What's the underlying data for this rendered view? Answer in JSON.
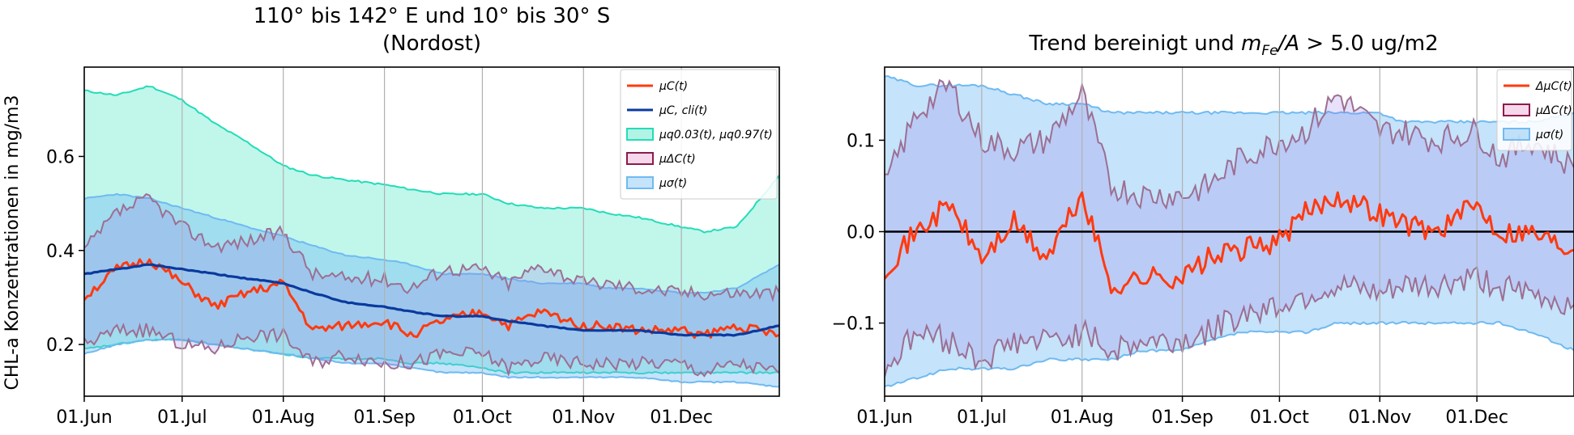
{
  "figure": {
    "ylabel": "CHL-a Konzentrationen in mg/m3"
  },
  "chart_data": [
    {
      "type": "line",
      "title_line1": "110° bis 142° E und 10° bis 30° S",
      "title_line2": "(Nordost)",
      "xlabel": "",
      "ylabel": "CHL-a Konzentrationen in mg/m3",
      "x_ticks": [
        "01.Jun",
        "01.Jul",
        "01.Aug",
        "01.Sep",
        "01.Oct",
        "01.Nov",
        "01.Dec"
      ],
      "x_tick_days": [
        0,
        30,
        61,
        92,
        122,
        153,
        183
      ],
      "x_range_days": [
        0,
        213
      ],
      "y_ticks": [
        0.2,
        0.4,
        0.6
      ],
      "ylim": [
        0.09,
        0.79
      ],
      "grid": "vertical",
      "legend_position": "top-right",
      "legend": [
        {
          "label": "μC(t)",
          "kind": "line",
          "color": "#ff3a10"
        },
        {
          "label": "μC, cli(t)",
          "kind": "line",
          "color": "#0a3a9e"
        },
        {
          "label": "μq0.03(t), μq0.97(t)",
          "kind": "patch",
          "color": "#22ddb8"
        },
        {
          "label": "μΔC(t)",
          "kind": "patch",
          "color": "#8c1b4a"
        },
        {
          "label": "μσ(t)",
          "kind": "patch",
          "color": "#6fbaf2"
        }
      ],
      "x_days": [
        0,
        10,
        20,
        30,
        40,
        50,
        61,
        70,
        80,
        92,
        100,
        110,
        122,
        130,
        140,
        153,
        160,
        170,
        183,
        190,
        200,
        213
      ],
      "series": [
        {
          "name": "μC(t)",
          "values": [
            0.3,
            0.36,
            0.38,
            0.33,
            0.28,
            0.31,
            0.33,
            0.23,
            0.24,
            0.25,
            0.22,
            0.25,
            0.27,
            0.24,
            0.27,
            0.24,
            0.24,
            0.23,
            0.23,
            0.22,
            0.24,
            0.22
          ]
        },
        {
          "name": "μC, cli(t)",
          "values": [
            0.35,
            0.36,
            0.37,
            0.36,
            0.35,
            0.34,
            0.33,
            0.31,
            0.29,
            0.28,
            0.27,
            0.26,
            0.26,
            0.25,
            0.24,
            0.23,
            0.23,
            0.23,
            0.22,
            0.22,
            0.22,
            0.24
          ]
        },
        {
          "name": "q0.97 upper",
          "values": [
            0.74,
            0.73,
            0.75,
            0.72,
            0.67,
            0.63,
            0.58,
            0.56,
            0.55,
            0.54,
            0.53,
            0.52,
            0.52,
            0.5,
            0.49,
            0.49,
            0.48,
            0.47,
            0.45,
            0.44,
            0.45,
            0.56
          ]
        },
        {
          "name": "q0.03 lower",
          "values": [
            0.19,
            0.2,
            0.21,
            0.21,
            0.2,
            0.19,
            0.18,
            0.17,
            0.17,
            0.17,
            0.16,
            0.16,
            0.15,
            0.14,
            0.14,
            0.14,
            0.14,
            0.14,
            0.14,
            0.14,
            0.14,
            0.14
          ]
        },
        {
          "name": "sigma upper",
          "values": [
            0.51,
            0.52,
            0.51,
            0.49,
            0.47,
            0.45,
            0.43,
            0.41,
            0.39,
            0.38,
            0.37,
            0.35,
            0.35,
            0.34,
            0.33,
            0.33,
            0.32,
            0.32,
            0.31,
            0.31,
            0.32,
            0.37
          ]
        },
        {
          "name": "sigma lower",
          "values": [
            0.18,
            0.2,
            0.21,
            0.21,
            0.2,
            0.19,
            0.18,
            0.17,
            0.16,
            0.16,
            0.15,
            0.14,
            0.14,
            0.13,
            0.13,
            0.13,
            0.13,
            0.13,
            0.12,
            0.12,
            0.12,
            0.11
          ]
        },
        {
          "name": "ΔC upper",
          "values": [
            0.4,
            0.48,
            0.51,
            0.45,
            0.41,
            0.42,
            0.44,
            0.35,
            0.34,
            0.34,
            0.32,
            0.36,
            0.36,
            0.33,
            0.37,
            0.33,
            0.33,
            0.32,
            0.31,
            0.31,
            0.31,
            0.31
          ]
        },
        {
          "name": "ΔC lower",
          "values": [
            0.2,
            0.23,
            0.23,
            0.2,
            0.19,
            0.22,
            0.22,
            0.16,
            0.18,
            0.16,
            0.16,
            0.18,
            0.18,
            0.15,
            0.17,
            0.16,
            0.16,
            0.16,
            0.16,
            0.14,
            0.16,
            0.14
          ]
        }
      ]
    },
    {
      "type": "line",
      "title": "Trend bereinigt und mFe/A > 5.0 ug/m2",
      "xlabel": "",
      "ylabel": "",
      "x_ticks": [
        "01.Jun",
        "01.Jul",
        "01.Aug",
        "01.Sep",
        "01.Oct",
        "01.Nov",
        "01.Dec"
      ],
      "x_tick_days": [
        0,
        30,
        61,
        92,
        122,
        153,
        183
      ],
      "x_range_days": [
        0,
        213
      ],
      "y_ticks": [
        -0.1,
        0.0,
        0.1
      ],
      "ylim": [
        -0.18,
        0.18
      ],
      "grid": "vertical",
      "zero_line": true,
      "legend_position": "top-right",
      "legend": [
        {
          "label": "ΔμC(t)",
          "kind": "line",
          "color": "#ff3a10"
        },
        {
          "label": "μΔC(t)",
          "kind": "patch",
          "color": "#8c1b4a"
        },
        {
          "label": "μσ(t)",
          "kind": "patch",
          "color": "#6fbaf2"
        }
      ],
      "x_days": [
        0,
        10,
        20,
        30,
        40,
        50,
        61,
        70,
        80,
        92,
        100,
        110,
        122,
        130,
        140,
        153,
        160,
        170,
        183,
        190,
        200,
        213
      ],
      "series": [
        {
          "name": "ΔμC(t)",
          "values": [
            -0.04,
            0.0,
            0.03,
            -0.03,
            0.01,
            -0.03,
            0.04,
            -0.06,
            -0.05,
            -0.05,
            -0.03,
            -0.02,
            -0.01,
            0.02,
            0.04,
            0.02,
            0.01,
            0.0,
            0.03,
            0.0,
            0.0,
            -0.02
          ]
        },
        {
          "name": "sigma upper",
          "values": [
            0.17,
            0.16,
            0.16,
            0.16,
            0.15,
            0.14,
            0.14,
            0.13,
            0.13,
            0.13,
            0.13,
            0.13,
            0.13,
            0.13,
            0.13,
            0.13,
            0.12,
            0.12,
            0.12,
            0.12,
            0.12,
            0.13
          ]
        },
        {
          "name": "sigma lower",
          "values": [
            -0.17,
            -0.16,
            -0.15,
            -0.15,
            -0.15,
            -0.14,
            -0.14,
            -0.14,
            -0.13,
            -0.13,
            -0.12,
            -0.11,
            -0.11,
            -0.11,
            -0.1,
            -0.1,
            -0.1,
            -0.1,
            -0.1,
            -0.1,
            -0.11,
            -0.13
          ]
        },
        {
          "name": "ΔC upper",
          "values": [
            0.05,
            0.13,
            0.16,
            0.1,
            0.09,
            0.1,
            0.15,
            0.05,
            0.04,
            0.04,
            0.05,
            0.08,
            0.1,
            0.11,
            0.15,
            0.11,
            0.11,
            0.1,
            0.11,
            0.08,
            0.1,
            0.07
          ]
        },
        {
          "name": "ΔC lower",
          "values": [
            -0.15,
            -0.11,
            -0.12,
            -0.14,
            -0.12,
            -0.12,
            -0.11,
            -0.13,
            -0.12,
            -0.12,
            -0.11,
            -0.09,
            -0.08,
            -0.07,
            -0.06,
            -0.07,
            -0.06,
            -0.06,
            -0.05,
            -0.06,
            -0.07,
            -0.08
          ]
        }
      ]
    }
  ]
}
